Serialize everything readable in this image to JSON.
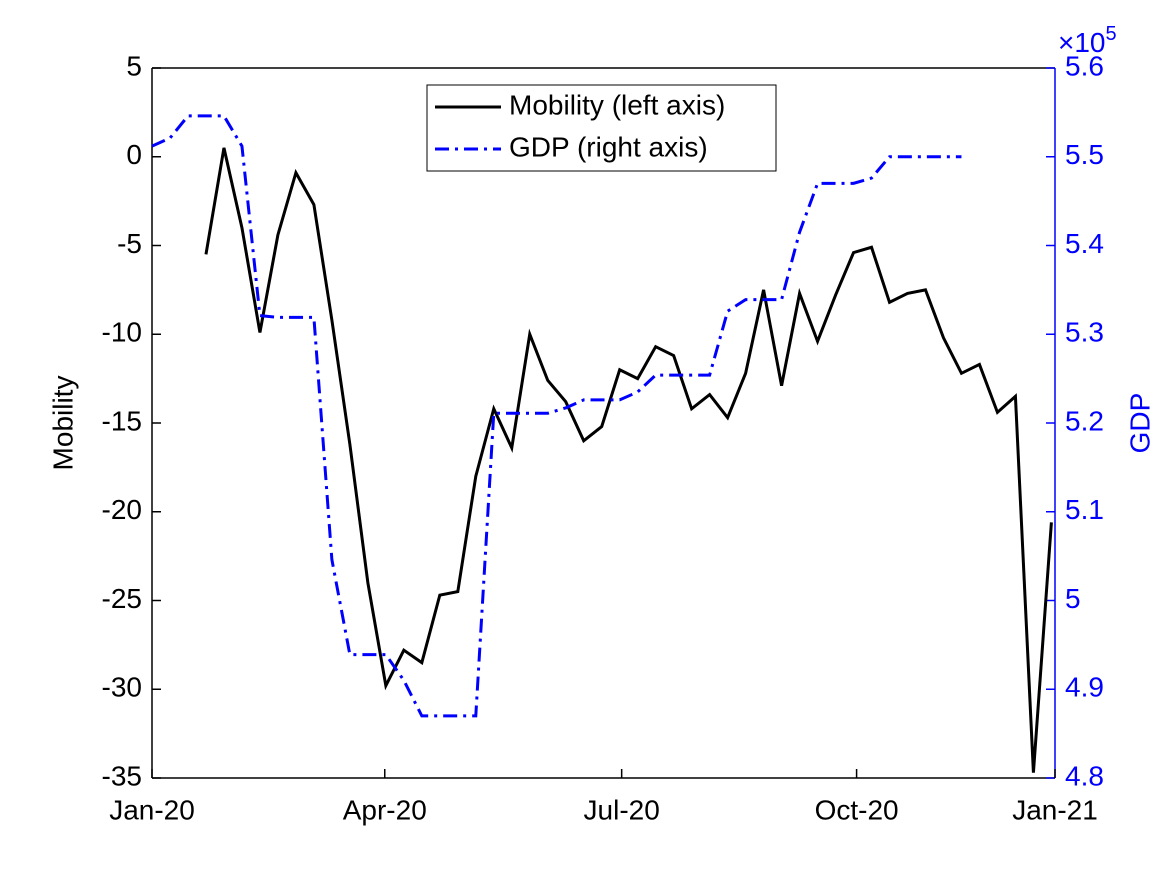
{
  "chart_data": {
    "type": "line",
    "y_label": "Mobility",
    "y2_label": "GDP",
    "y2_exponent": {
      "base": "×10",
      "power": "5"
    },
    "xlim": [
      0,
      50.2
    ],
    "xticks": [
      {
        "value": 0,
        "label": "Jan-20"
      },
      {
        "value": 12.94,
        "label": "Apr-20"
      },
      {
        "value": 26.11,
        "label": "Jul-20"
      },
      {
        "value": 39.17,
        "label": "Oct-20"
      },
      {
        "value": 50.2,
        "label": "Jan-21"
      }
    ],
    "ylim": [
      -35,
      5
    ],
    "yticks": [
      5,
      0,
      -5,
      -10,
      -15,
      -20,
      -25,
      -30,
      -35
    ],
    "y2lim": [
      4.8,
      5.6
    ],
    "y2ticks": [
      5.6,
      5.5,
      5.4,
      5.3,
      5.2,
      5.1,
      5,
      4.9,
      4.8
    ],
    "y2_color": "#0000ff",
    "legend": "top",
    "series": [
      {
        "name": "Mobility (left axis)",
        "color": "#000000",
        "dash": "solid",
        "x": [
          3,
          4,
          5,
          6,
          7,
          8,
          9,
          10,
          11,
          12,
          13,
          14,
          15,
          16,
          17,
          18,
          19,
          20,
          21,
          22,
          23,
          24,
          25,
          26,
          27,
          28,
          29,
          30,
          31,
          32,
          33,
          34,
          35,
          36,
          37,
          38,
          39,
          40,
          41,
          42,
          43,
          44,
          45,
          46,
          47,
          48,
          49,
          50
        ],
        "values": [
          -5.5,
          0.5,
          -4.0,
          -9.9,
          -4.4,
          -0.9,
          -2.7,
          -9.2,
          -16.2,
          -24.0,
          -29.8,
          -27.8,
          -28.5,
          -24.7,
          -24.5,
          -18.0,
          -14.2,
          -16.4,
          -10.0,
          -12.6,
          -13.8,
          -16.0,
          -15.2,
          -12.0,
          -12.5,
          -10.7,
          -11.2,
          -14.2,
          -13.4,
          -14.7,
          -12.2,
          -7.5,
          -12.9,
          -7.7,
          -10.4,
          -7.8,
          -5.4,
          -5.1,
          -8.2,
          -7.7,
          -7.5,
          -10.2,
          -12.2,
          -11.7,
          -14.4,
          -13.5,
          -34.7,
          -20.6
        ]
      },
      {
        "name": "GDP (right axis)",
        "color": "#0000ff",
        "dash": "dashdot",
        "axis": "y2",
        "x": [
          0,
          1,
          2,
          3,
          4,
          5,
          6,
          7,
          8,
          9,
          10,
          11,
          12,
          13,
          14,
          15,
          16,
          17,
          18,
          19,
          20,
          21,
          22,
          23,
          24,
          25,
          26,
          27,
          28,
          29,
          30,
          31,
          32,
          33,
          34,
          35,
          36,
          37,
          38,
          39,
          40,
          41,
          42,
          43,
          44,
          45
        ],
        "values": [
          5.512,
          5.521,
          5.546,
          5.546,
          5.546,
          5.512,
          5.321,
          5.319,
          5.319,
          5.319,
          5.046,
          4.939,
          4.939,
          4.939,
          4.91,
          4.87,
          4.87,
          4.87,
          4.87,
          5.211,
          5.211,
          5.211,
          5.211,
          5.217,
          5.226,
          5.226,
          5.226,
          5.235,
          5.254,
          5.254,
          5.254,
          5.254,
          5.326,
          5.339,
          5.339,
          5.339,
          5.415,
          5.47,
          5.47,
          5.47,
          5.476,
          5.5,
          5.5,
          5.5,
          5.5,
          5.5
        ]
      }
    ]
  }
}
